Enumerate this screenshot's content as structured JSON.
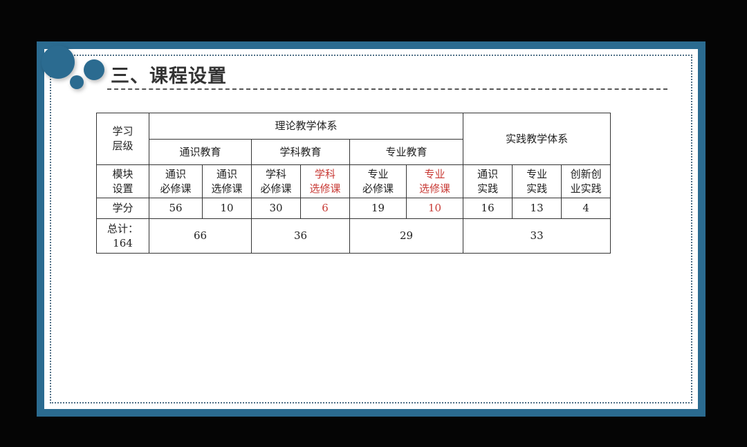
{
  "slide": {
    "title": "三、课程设置",
    "accent_color": "#2b6b90",
    "highlight_color": "#c83a35"
  },
  "table": {
    "level_label": [
      "学习",
      "层级"
    ],
    "theory_system": "理论教学体系",
    "practice_system": "实践教学体系",
    "groups": [
      "通识教育",
      "学科教育",
      "专业教育"
    ],
    "module_label": [
      "模块",
      "设置"
    ],
    "modules": [
      {
        "line1": "通识",
        "line2": "必修课",
        "credits": "56",
        "highlight": false
      },
      {
        "line1": "通识",
        "line2": "选修课",
        "credits": "10",
        "highlight": false
      },
      {
        "line1": "学科",
        "line2": "必修课",
        "credits": "30",
        "highlight": false
      },
      {
        "line1": "学科",
        "line2": "选修课",
        "credits": "6",
        "highlight": true
      },
      {
        "line1": "专业",
        "line2": "必修课",
        "credits": "19",
        "highlight": false
      },
      {
        "line1": "专业",
        "line2": "选修课",
        "credits": "10",
        "highlight": true
      },
      {
        "line1": "通识",
        "line2": "实践",
        "credits": "16",
        "highlight": false
      },
      {
        "line1": "专业",
        "line2": "实践",
        "credits": "13",
        "highlight": false
      },
      {
        "line1": "创新创",
        "line2": "业实践",
        "credits": "4",
        "highlight": false
      }
    ],
    "credits_label": "学分",
    "total_label": [
      "总计：",
      "164"
    ],
    "totals": [
      "66",
      "36",
      "29",
      "33"
    ]
  }
}
